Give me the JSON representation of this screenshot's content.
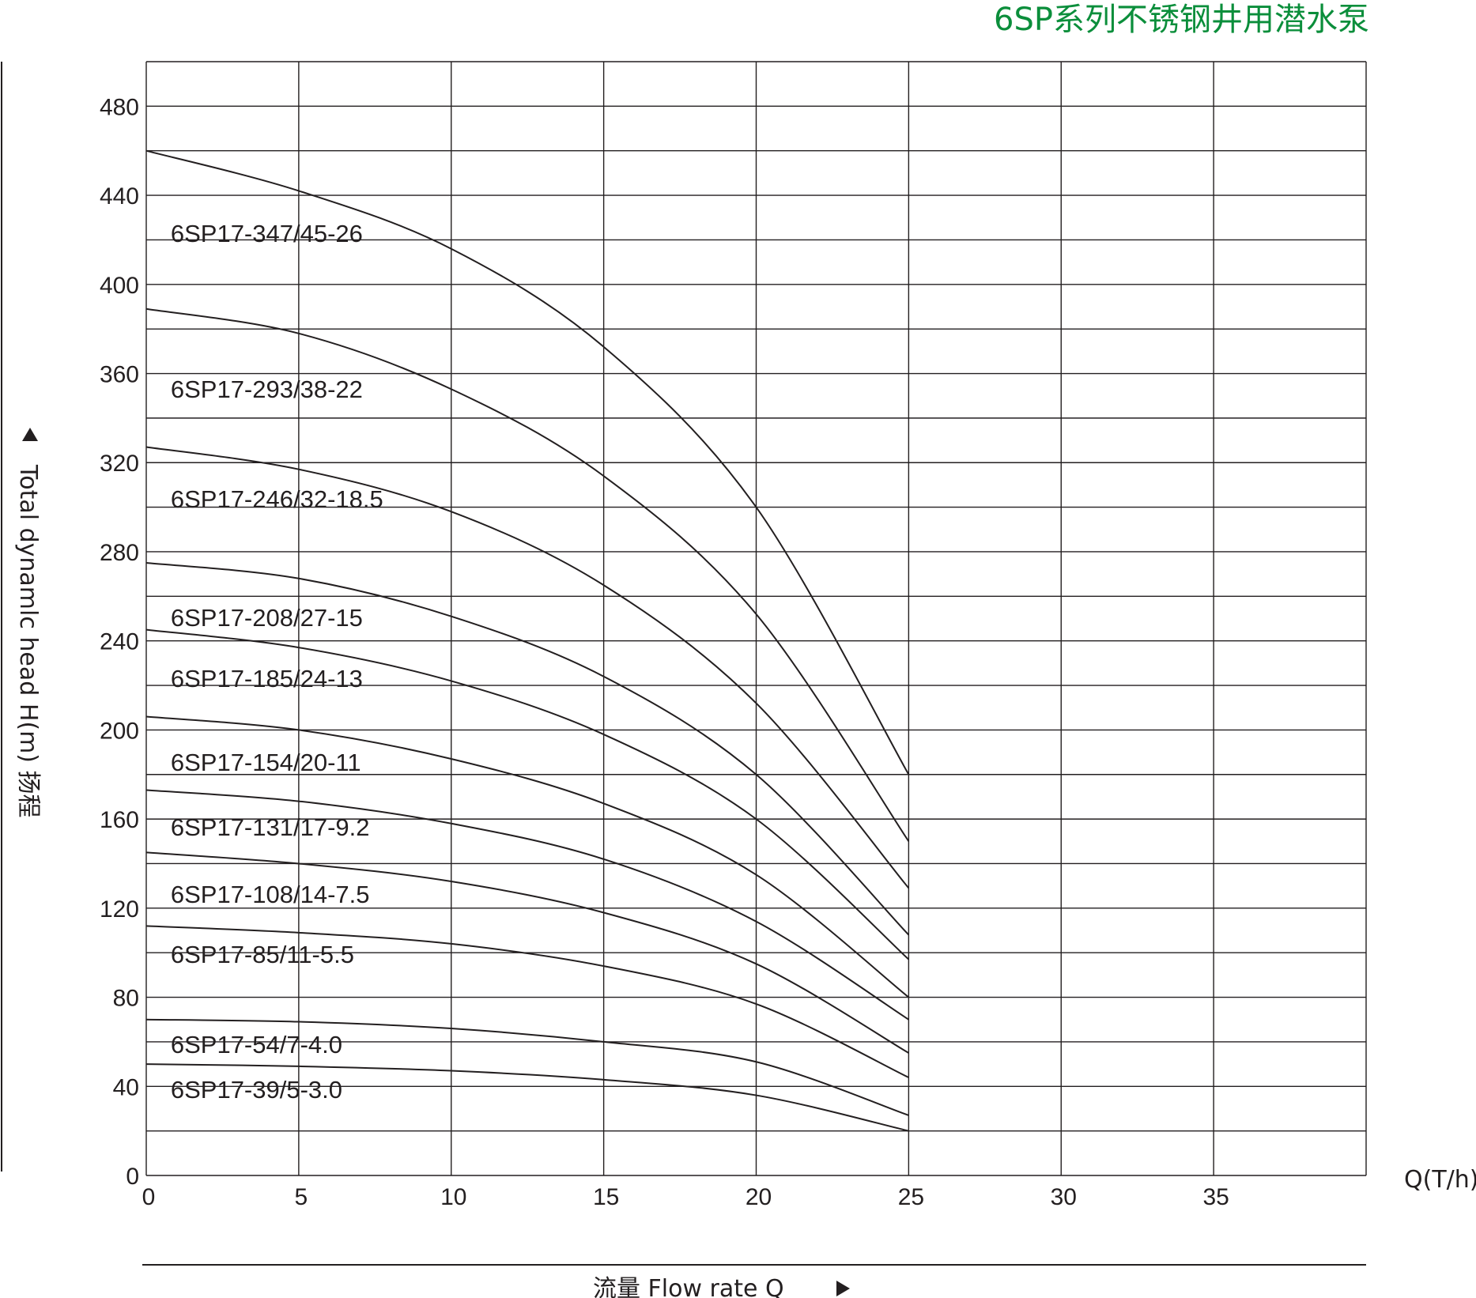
{
  "title": "6SP系列不锈钢井用潜水泵",
  "colors": {
    "title": "#0b8e3b",
    "ink": "#231f20",
    "background": "#ffffff"
  },
  "chart_data": {
    "type": "line",
    "title": "6SP系列不锈钢井用潜水泵",
    "xlabel": "流量 Flow rate Q",
    "xunit": "Q(T/h)",
    "ylabel": "Total dynamlc head H(m) 扬程",
    "xlim": [
      0,
      40
    ],
    "ylim": [
      0,
      500
    ],
    "x_ticks": [
      0,
      5,
      10,
      15,
      20,
      25,
      30,
      35
    ],
    "y_ticks": [
      0,
      40,
      80,
      120,
      160,
      200,
      240,
      280,
      320,
      360,
      400,
      440,
      480
    ],
    "grid": true,
    "series": [
      {
        "name": "6SP17-347/45-26",
        "x": [
          0,
          5,
          10,
          15,
          20,
          25
        ],
        "y": [
          460,
          442,
          416,
          372,
          300,
          180
        ]
      },
      {
        "name": "6SP17-293/38-22",
        "x": [
          0,
          5,
          10,
          15,
          20,
          25
        ],
        "y": [
          389,
          378,
          353,
          314,
          252,
          150
        ]
      },
      {
        "name": "6SP17-246/32-18.5",
        "x": [
          0,
          5,
          10,
          15,
          20,
          25
        ],
        "y": [
          327,
          317,
          298,
          265,
          212,
          129
        ]
      },
      {
        "name": "6SP17-208/27-15",
        "x": [
          0,
          5,
          10,
          15,
          20,
          25
        ],
        "y": [
          275,
          268,
          251,
          224,
          180,
          108
        ]
      },
      {
        "name": "6SP17-185/24-13",
        "x": [
          0,
          5,
          10,
          15,
          20,
          25
        ],
        "y": [
          245,
          237,
          222,
          198,
          160,
          97
        ]
      },
      {
        "name": "6SP17-154/20-11",
        "x": [
          0,
          5,
          10,
          15,
          20,
          25
        ],
        "y": [
          206,
          200,
          187,
          167,
          135,
          80
        ]
      },
      {
        "name": "6SP17-131/17-9.2",
        "x": [
          0,
          5,
          10,
          15,
          20,
          25
        ],
        "y": [
          173,
          168,
          158,
          142,
          114,
          70
        ]
      },
      {
        "name": "6SP17-108/14-7.5",
        "x": [
          0,
          5,
          10,
          15,
          20,
          25
        ],
        "y": [
          145,
          140,
          132,
          118,
          95,
          55
        ]
      },
      {
        "name": "6SP17-85/11-5.5",
        "x": [
          0,
          5,
          10,
          15,
          20,
          25
        ],
        "y": [
          112,
          109,
          104,
          94,
          77,
          44
        ]
      },
      {
        "name": "6SP17-54/7-4.0",
        "x": [
          0,
          5,
          10,
          15,
          20,
          25
        ],
        "y": [
          70,
          69,
          66,
          60,
          51,
          27
        ]
      },
      {
        "name": "6SP17-39/5-3.0",
        "x": [
          0,
          5,
          10,
          15,
          20,
          25
        ],
        "y": [
          50,
          49,
          47,
          43,
          36,
          20
        ]
      }
    ]
  }
}
